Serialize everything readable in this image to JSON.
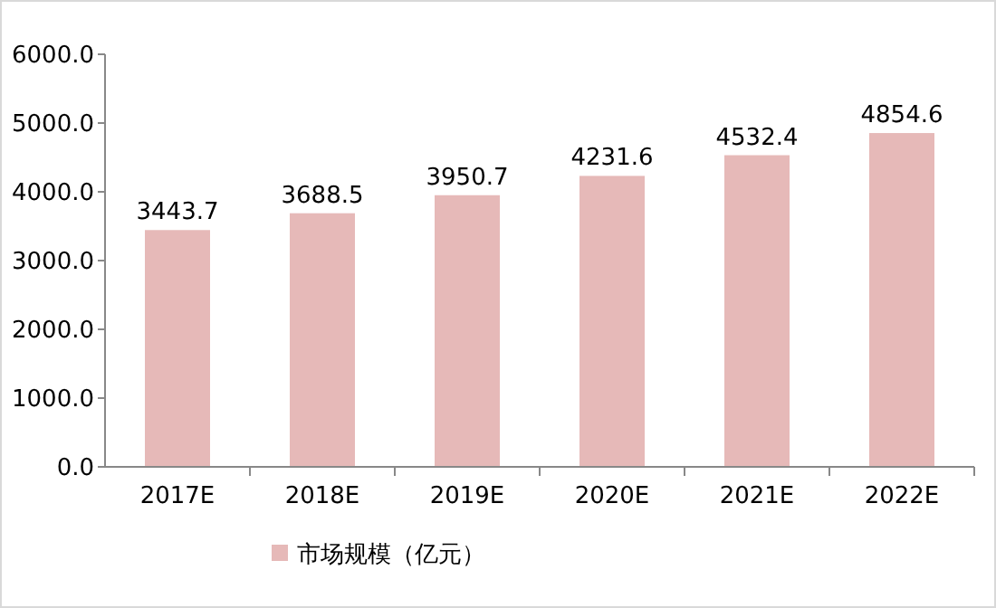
{
  "chart_data": {
    "type": "bar",
    "categories": [
      "2017E",
      "2018E",
      "2019E",
      "2020E",
      "2021E",
      "2022E"
    ],
    "series": [
      {
        "name": "市场规模（亿元）",
        "color": "#e6b9b8",
        "values": [
          3443.7,
          3688.5,
          3950.7,
          4231.6,
          4532.4,
          4854.6
        ]
      }
    ],
    "ylim": [
      0,
      6000
    ],
    "yticks": [
      {
        "value": 0,
        "label": "0.0"
      },
      {
        "value": 1000,
        "label": "1000.0"
      },
      {
        "value": 2000,
        "label": "2000.0"
      },
      {
        "value": 3000,
        "label": "3000.0"
      },
      {
        "value": 4000,
        "label": "4000.0"
      },
      {
        "value": 5000,
        "label": "5000.0"
      },
      {
        "value": 6000,
        "label": "6000.0"
      }
    ],
    "data_labels": true,
    "legend": "bottom",
    "grid": false
  }
}
